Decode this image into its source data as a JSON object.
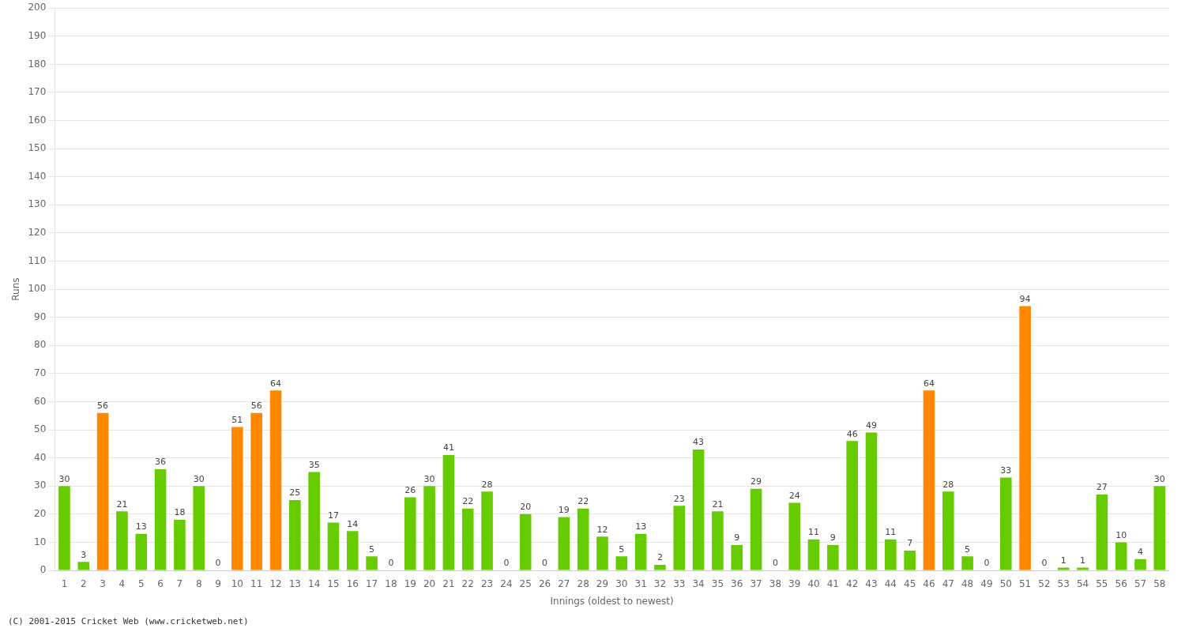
{
  "chart_data": {
    "type": "bar",
    "categories": [
      "1",
      "2",
      "3",
      "4",
      "5",
      "6",
      "7",
      "8",
      "9",
      "10",
      "11",
      "12",
      "13",
      "14",
      "15",
      "16",
      "17",
      "18",
      "19",
      "20",
      "21",
      "22",
      "23",
      "24",
      "25",
      "26",
      "27",
      "28",
      "29",
      "30",
      "31",
      "32",
      "33",
      "34",
      "35",
      "36",
      "37",
      "38",
      "39",
      "40",
      "41",
      "42",
      "43",
      "44",
      "45",
      "46",
      "47",
      "48",
      "49",
      "50",
      "51",
      "52",
      "53",
      "54",
      "55",
      "56",
      "57",
      "58"
    ],
    "values": [
      30,
      3,
      56,
      21,
      13,
      36,
      18,
      30,
      0,
      51,
      56,
      64,
      25,
      35,
      17,
      14,
      5,
      0,
      26,
      30,
      41,
      22,
      28,
      0,
      20,
      0,
      19,
      22,
      12,
      5,
      13,
      2,
      23,
      43,
      21,
      9,
      29,
      0,
      24,
      11,
      9,
      46,
      49,
      11,
      7,
      64,
      28,
      5,
      0,
      33,
      94,
      0,
      1,
      1,
      27,
      10,
      4,
      30
    ],
    "colors": [
      "#66cc00",
      "#66cc00",
      "#ff8800",
      "#66cc00",
      "#66cc00",
      "#66cc00",
      "#66cc00",
      "#66cc00",
      "#66cc00",
      "#ff8800",
      "#ff8800",
      "#ff8800",
      "#66cc00",
      "#66cc00",
      "#66cc00",
      "#66cc00",
      "#66cc00",
      "#66cc00",
      "#66cc00",
      "#66cc00",
      "#66cc00",
      "#66cc00",
      "#66cc00",
      "#66cc00",
      "#66cc00",
      "#66cc00",
      "#66cc00",
      "#66cc00",
      "#66cc00",
      "#66cc00",
      "#66cc00",
      "#66cc00",
      "#66cc00",
      "#66cc00",
      "#66cc00",
      "#66cc00",
      "#66cc00",
      "#66cc00",
      "#66cc00",
      "#66cc00",
      "#66cc00",
      "#66cc00",
      "#66cc00",
      "#66cc00",
      "#66cc00",
      "#ff8800",
      "#66cc00",
      "#66cc00",
      "#66cc00",
      "#66cc00",
      "#ff8800",
      "#66cc00",
      "#66cc00",
      "#66cc00",
      "#66cc00",
      "#66cc00",
      "#66cc00",
      "#66cc00"
    ],
    "x_label": "Innings (oldest to newest)",
    "y_label": "Runs",
    "ylim": [
      0,
      200
    ],
    "yticks": [
      0,
      10,
      20,
      30,
      40,
      50,
      60,
      70,
      80,
      90,
      100,
      110,
      120,
      130,
      140,
      150,
      160,
      170,
      180,
      190,
      200
    ],
    "grid": true,
    "data_labels": true,
    "annotations": [
      "(C) 2001-2015 Cricket Web (www.cricketweb.net)"
    ]
  }
}
